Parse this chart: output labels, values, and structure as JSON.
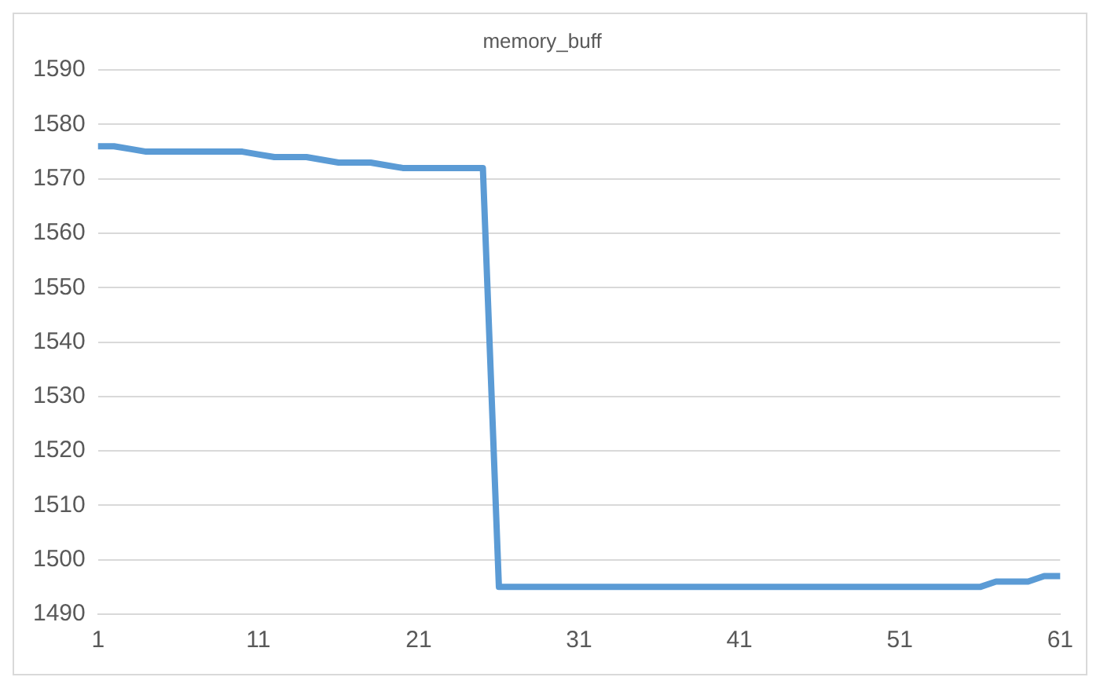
{
  "chart_data": {
    "type": "line",
    "title": "memory_buff",
    "categories": [
      "1",
      null,
      null,
      null,
      null,
      null,
      null,
      null,
      null,
      null,
      "11",
      null,
      null,
      null,
      null,
      null,
      null,
      null,
      null,
      null,
      "21",
      null,
      null,
      null,
      null,
      null,
      null,
      null,
      null,
      null,
      "31",
      null,
      null,
      null,
      null,
      null,
      null,
      null,
      null,
      null,
      "41",
      null,
      null,
      null,
      null,
      null,
      null,
      null,
      null,
      null,
      "51",
      null,
      null,
      null,
      null,
      null,
      null,
      null,
      null,
      null,
      "61"
    ],
    "series": [
      {
        "color": "#5b9bd5",
        "values": [
          1576,
          1576,
          1575.5,
          1575,
          1575,
          1575,
          1575,
          1575,
          1575,
          1575,
          1574.5,
          1574,
          1574,
          1574,
          1573.5,
          1573,
          1573,
          1573,
          1572.5,
          1572,
          1572,
          1572,
          1572,
          1572,
          1572,
          1495,
          1495,
          1495,
          1495,
          1495,
          1495,
          1495,
          1495,
          1495,
          1495,
          1495,
          1495,
          1495,
          1495,
          1495,
          1495,
          1495,
          1495,
          1495,
          1495,
          1495,
          1495,
          1495,
          1495,
          1495,
          1495,
          1495,
          1495,
          1495,
          1495,
          1495,
          1496,
          1496,
          1496,
          1497,
          1497
        ]
      }
    ],
    "ylim": [
      1490,
      1590
    ],
    "yticks": [
      1490,
      1500,
      1510,
      1520,
      1530,
      1540,
      1550,
      1560,
      1570,
      1580,
      1590
    ],
    "grid": "y",
    "legend": false,
    "marker": "none",
    "line_style": "solid"
  }
}
